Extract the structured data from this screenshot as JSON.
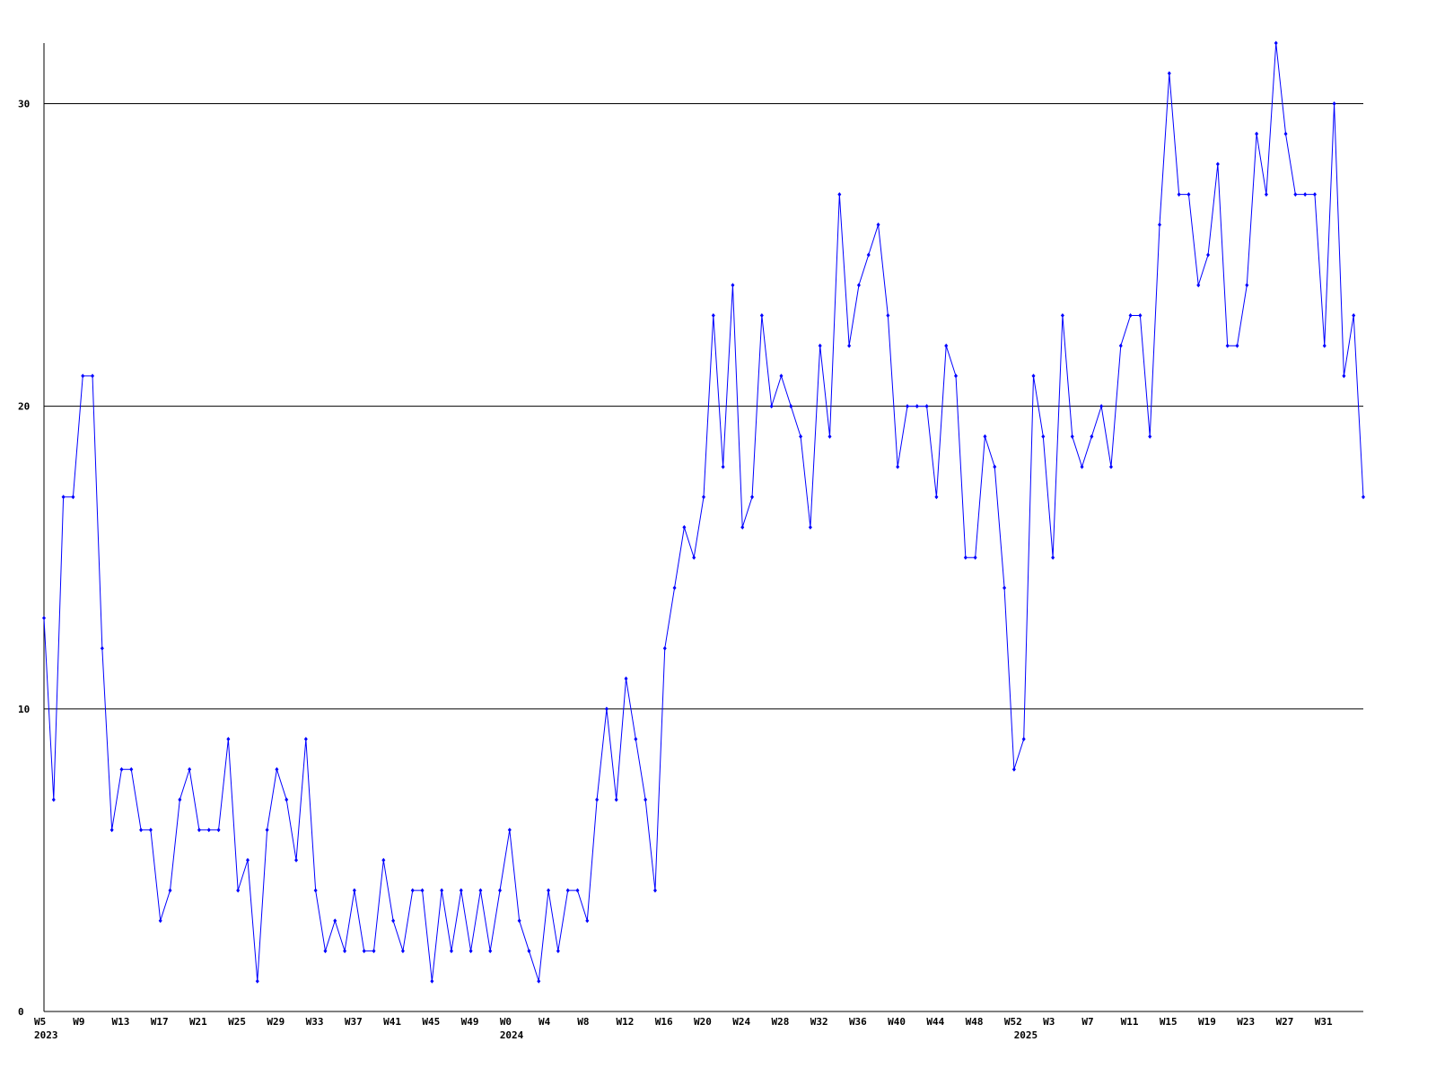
{
  "chart_data": {
    "type": "line",
    "color": "#0000ff",
    "grid": true,
    "ylim": [
      0,
      32
    ],
    "yticks": [
      0,
      10,
      20,
      30
    ],
    "categories": [
      "W5",
      null,
      null,
      null,
      "W9",
      null,
      null,
      null,
      "W13",
      null,
      null,
      null,
      "W17",
      null,
      null,
      null,
      "W21",
      null,
      null,
      null,
      "W25",
      null,
      null,
      null,
      "W29",
      null,
      null,
      null,
      "W33",
      null,
      null,
      null,
      "W37",
      null,
      null,
      null,
      "W41",
      null,
      null,
      null,
      "W45",
      null,
      null,
      null,
      "W49",
      null,
      null,
      null,
      "W0",
      null,
      null,
      null,
      "W4",
      null,
      null,
      null,
      "W8",
      null,
      null,
      null,
      "W12",
      null,
      null,
      null,
      "W16",
      null,
      null,
      null,
      "W20",
      null,
      null,
      null,
      "W24",
      null,
      null,
      null,
      "W28",
      null,
      null,
      null,
      "W32",
      null,
      null,
      null,
      "W36",
      null,
      null,
      null,
      "W40",
      null,
      null,
      null,
      "W44",
      null,
      null,
      null,
      "W48",
      null,
      null,
      null,
      "W52",
      null,
      null,
      null,
      "W3",
      null,
      null,
      null,
      "W7",
      null,
      null,
      null,
      "W11",
      null,
      null,
      null,
      "W15",
      null,
      null,
      null,
      "W19",
      null,
      null,
      null,
      "W23",
      null,
      null,
      null,
      "W27",
      null,
      null,
      null,
      "W31",
      null,
      null,
      null,
      null
    ],
    "x_years": [
      "2023",
      null,
      null,
      null,
      null,
      null,
      null,
      null,
      null,
      null,
      null,
      null,
      null,
      null,
      null,
      null,
      null,
      null,
      null,
      null,
      null,
      null,
      null,
      null,
      null,
      null,
      null,
      null,
      null,
      null,
      null,
      null,
      null,
      null,
      null,
      null,
      null,
      null,
      null,
      null,
      null,
      null,
      null,
      null,
      null,
      null,
      null,
      null,
      "2024",
      null,
      null,
      null,
      null,
      null,
      null,
      null,
      null,
      null,
      null,
      null,
      null,
      null,
      null,
      null,
      null,
      null,
      null,
      null,
      null,
      null,
      null,
      null,
      null,
      null,
      null,
      null,
      null,
      null,
      null,
      null,
      null,
      null,
      null,
      null,
      null,
      null,
      null,
      null,
      null,
      null,
      null,
      null,
      null,
      null,
      null,
      null,
      null,
      null,
      null,
      null,
      null,
      "2025",
      null,
      null,
      null,
      null,
      null,
      null,
      null,
      null,
      null,
      null,
      null,
      null,
      null,
      null,
      null,
      null,
      null,
      null,
      null,
      null,
      null,
      null,
      null,
      null,
      null,
      null,
      null,
      null,
      null,
      null,
      null,
      null,
      null,
      null,
      null
    ],
    "series": [
      {
        "values": [
          13,
          7,
          17,
          17,
          21,
          21,
          12,
          6,
          8,
          8,
          6,
          6,
          3,
          4,
          7,
          8,
          6,
          6,
          6,
          9,
          4,
          5,
          1,
          6,
          8,
          7,
          5,
          9,
          4,
          2,
          3,
          2,
          4,
          2,
          2,
          5,
          3,
          2,
          4,
          4,
          1,
          4,
          2,
          4,
          2,
          4,
          2,
          4,
          6,
          3,
          2,
          1,
          4,
          2,
          4,
          4,
          3,
          7,
          10,
          7,
          11,
          9,
          7,
          4,
          12,
          14,
          16,
          15,
          17,
          23,
          18,
          24,
          16,
          17,
          23,
          20,
          21,
          20,
          19,
          16,
          22,
          19,
          27,
          22,
          24,
          25,
          26,
          23,
          18,
          20,
          20,
          20,
          17,
          22,
          21,
          15,
          15,
          19,
          18,
          14,
          8,
          9,
          21,
          19,
          15,
          23,
          19,
          18,
          19,
          20,
          18,
          22,
          23,
          23,
          19,
          26,
          31,
          27,
          27,
          24,
          25,
          28,
          22,
          22,
          24,
          29,
          27,
          32,
          29,
          27,
          27,
          27,
          22,
          30,
          21,
          23,
          17
        ]
      }
    ]
  }
}
